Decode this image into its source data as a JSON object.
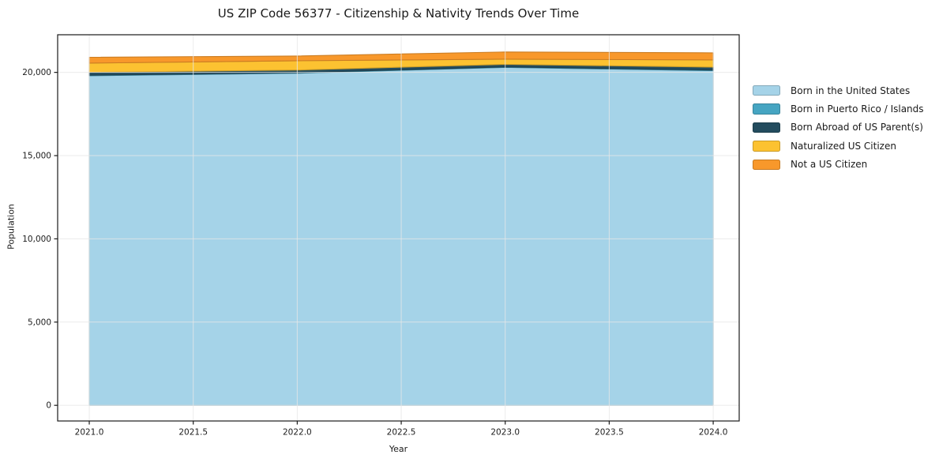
{
  "chart_data": {
    "type": "area",
    "stacked": true,
    "title": "US ZIP Code 56377 - Citizenship & Nativity Trends Over Time",
    "xlabel": "Year",
    "ylabel": "Population",
    "x": [
      2021,
      2022,
      2023,
      2024
    ],
    "series": [
      {
        "name": "Born in the United States",
        "color": "#a5d3e8",
        "values": [
          19800,
          19950,
          20300,
          20100
        ]
      },
      {
        "name": "Born in Puerto Rico / Islands",
        "color": "#46a5c2",
        "values": [
          30,
          30,
          30,
          40
        ]
      },
      {
        "name": "Born Abroad of US Parent(s)",
        "color": "#234c5e",
        "values": [
          175,
          160,
          150,
          175
        ]
      },
      {
        "name": "Naturalized US Citizen",
        "color": "#fcc231",
        "values": [
          550,
          560,
          315,
          430
        ]
      },
      {
        "name": "Not a US Citizen",
        "color": "#f8982b",
        "values": [
          355,
          285,
          430,
          430
        ]
      }
    ],
    "x_ticks": {
      "values": [
        2021,
        2021.5,
        2022,
        2022.5,
        2023,
        2023.5,
        2024
      ],
      "labels": [
        "2021.0",
        "2021.5",
        "2022.0",
        "2022.5",
        "2023.0",
        "2023.5",
        "2024.0"
      ]
    },
    "y_ticks": {
      "values": [
        0,
        5000,
        10000,
        15000,
        20000
      ],
      "labels": [
        "0",
        "5,000",
        "10,000",
        "15,000",
        "20,000"
      ]
    },
    "xlim": [
      2020.848,
      2024.125
    ],
    "ylim": [
      -940,
      22260
    ],
    "grid": true,
    "grid_color": "#e7e7e7",
    "spine_color": "#1a1a1a",
    "tick_text_color": "#1c1c1c",
    "legend_position": "right",
    "legend": [
      "Born in the United States",
      "Born in Puerto Rico / Islands",
      "Born Abroad of US Parent(s)",
      "Naturalized US Citizen",
      "Not a US Citizen"
    ]
  }
}
